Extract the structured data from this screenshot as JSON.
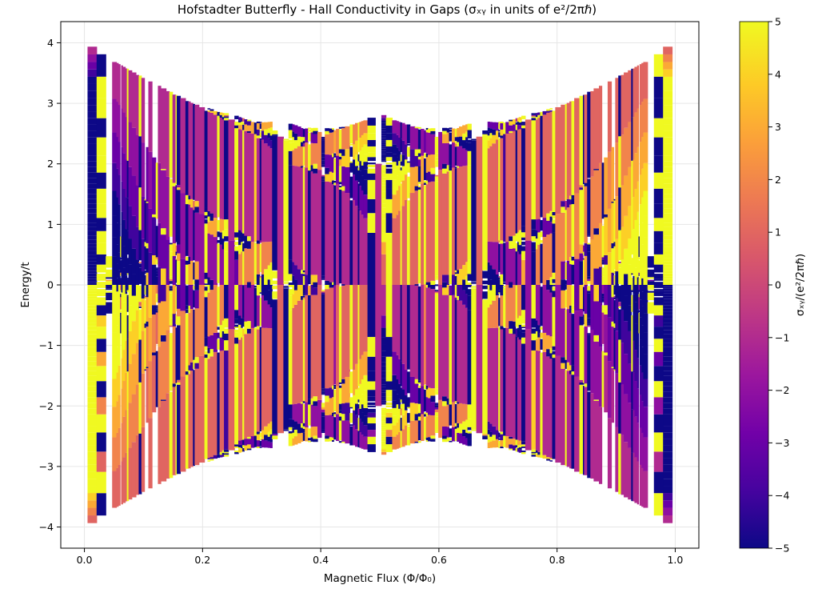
{
  "chart_data": {
    "type": "heatmap",
    "title": "Hofstadter Butterfly - Hall Conductivity in Gaps (σₓᵧ in units of e²/2πℏ)",
    "xlabel": "Magnetic Flux (Φ/Φ₀)",
    "ylabel": "Energy/t",
    "xlim": [
      -0.04,
      1.04
    ],
    "ylim": [
      -4.35,
      4.35
    ],
    "x_ticks": [
      0.0,
      0.2,
      0.4,
      0.6,
      0.8,
      1.0
    ],
    "x_tick_labels": [
      "0.0",
      "0.2",
      "0.4",
      "0.6",
      "0.8",
      "1.0"
    ],
    "y_ticks": [
      -4,
      -3,
      -2,
      -1,
      0,
      1,
      2,
      3,
      4
    ],
    "y_tick_labels": [
      "−4",
      "−3",
      "−2",
      "−1",
      "0",
      "1",
      "2",
      "3",
      "4"
    ],
    "grid": true,
    "colormap": "plasma",
    "flux_range": [
      0.01,
      0.99
    ],
    "energy_range": [
      -3.95,
      3.95
    ],
    "colorbar": {
      "label": "σₓᵧ/(e²/2πℏ)",
      "range": [
        -5,
        5
      ],
      "ticks": [
        -5,
        -4,
        -3,
        -2,
        -1,
        0,
        1,
        2,
        3,
        4,
        5
      ],
      "tick_labels": [
        "−5",
        "−4",
        "−3",
        "−2",
        "−1",
        "0",
        "1",
        "2",
        "3",
        "4",
        "5"
      ]
    },
    "gap_sigma_values": {
      "upper_main_gap_left_half": -1,
      "lower_main_gap_left_half": 1,
      "upper_main_gap_right_half": 1,
      "lower_main_gap_right_half": -1
    }
  },
  "colors": {
    "plasma_stops": [
      "#0d0887",
      "#46039f",
      "#7201a8",
      "#9c179e",
      "#bd3786",
      "#d8576b",
      "#ed7953",
      "#fb9f3a",
      "#fdca26",
      "#f0f921"
    ],
    "grid": "#e6e6e6",
    "axis": "#000000"
  }
}
